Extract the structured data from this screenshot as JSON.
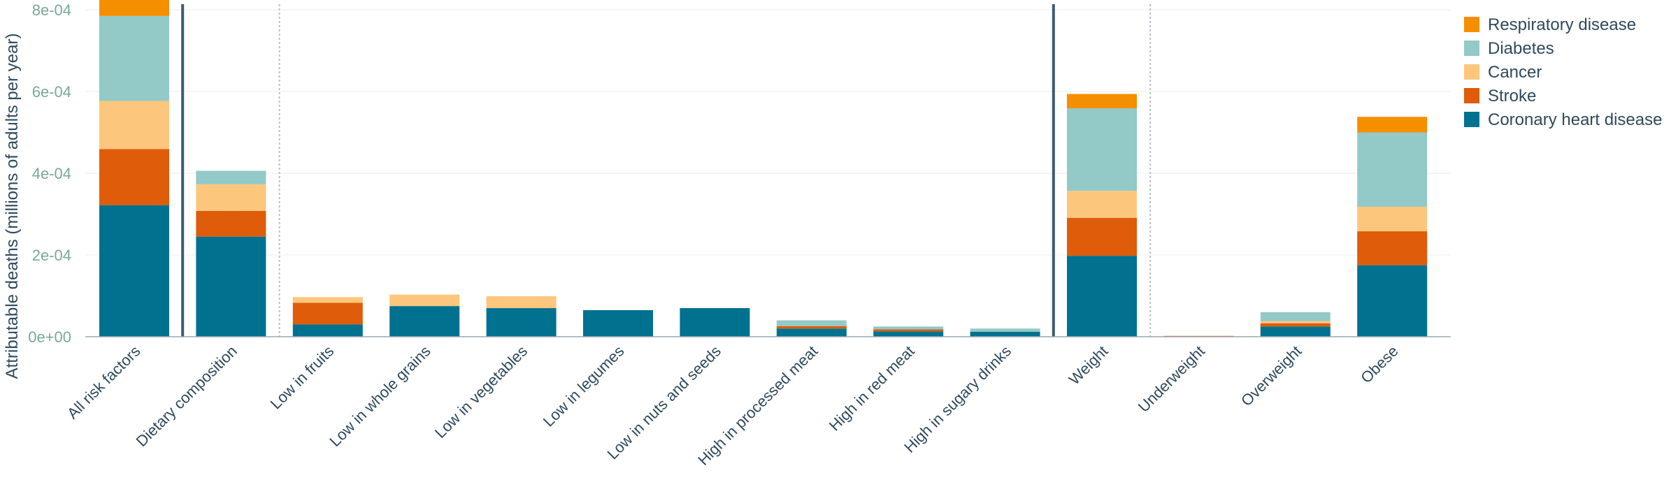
{
  "chart_data": {
    "type": "bar",
    "stacked": true,
    "ylabel": "Attributable deaths (millions of adults per year)",
    "ylim": [
      0,
      0.0008
    ],
    "yticks": [
      {
        "value": 0,
        "label": "0e+00"
      },
      {
        "value": 0.0002,
        "label": "2e-04"
      },
      {
        "value": 0.0004,
        "label": "4e-04"
      },
      {
        "value": 0.0006,
        "label": "6e-04"
      },
      {
        "value": 0.0008,
        "label": "8e-04"
      }
    ],
    "grid": true,
    "legend_position": "top-right",
    "categories": [
      "All risk factors",
      "Dietary composition",
      "Low in fruits",
      "Low in whole grains",
      "Low in vegetables",
      "Low in legumes",
      "Low in nuts and seeds",
      "High in processed meat",
      "High in red meat",
      "High in sugary drinks",
      "Weight",
      "Underweight",
      "Overweight",
      "Obese"
    ],
    "separators": [
      {
        "after_index": 0,
        "style": "solid"
      },
      {
        "after_index": 1,
        "style": "dotted"
      },
      {
        "after_index": 9,
        "style": "solid"
      },
      {
        "after_index": 10,
        "style": "dotted"
      }
    ],
    "series": [
      {
        "name": "Coronary heart disease",
        "color": "#00718f",
        "values": [
          0.000322,
          0.000245,
          3e-05,
          7.5e-05,
          7e-05,
          6.5e-05,
          7e-05,
          2e-05,
          1.3e-05,
          1.2e-05,
          0.000198,
          0.0,
          2.5e-05,
          0.000175
        ]
      },
      {
        "name": "Stroke",
        "color": "#df5c0a",
        "values": [
          0.000137,
          6.3e-05,
          5.3e-05,
          0.0,
          0.0,
          0.0,
          0.0,
          6e-06,
          5e-06,
          0.0,
          9.3e-05,
          2e-06,
          8e-06,
          8.3e-05
        ]
      },
      {
        "name": "Cancer",
        "color": "#fcc77c",
        "values": [
          0.000118,
          6.5e-05,
          1.4e-05,
          2.8e-05,
          2.9e-05,
          0.0,
          0.0,
          0.0,
          0.0,
          0.0,
          6.6e-05,
          0.0,
          5e-06,
          6e-05
        ]
      },
      {
        "name": "Diabetes",
        "color": "#93c9c7",
        "values": [
          0.000208,
          3.3e-05,
          0.0,
          0.0,
          0.0,
          0.0,
          0.0,
          1.4e-05,
          7e-06,
          8e-06,
          0.000202,
          0.0,
          2.2e-05,
          0.000182
        ]
      },
      {
        "name": "Respiratory disease",
        "color": "#f58f00",
        "values": [
          4e-05,
          0.0,
          0.0,
          0.0,
          0.0,
          0.0,
          0.0,
          0.0,
          0.0,
          0.0,
          3.5e-05,
          0.0,
          0.0,
          3.8e-05
        ]
      }
    ],
    "legend_order": [
      "Respiratory disease",
      "Diabetes",
      "Cancer",
      "Stroke",
      "Coronary heart disease"
    ]
  }
}
